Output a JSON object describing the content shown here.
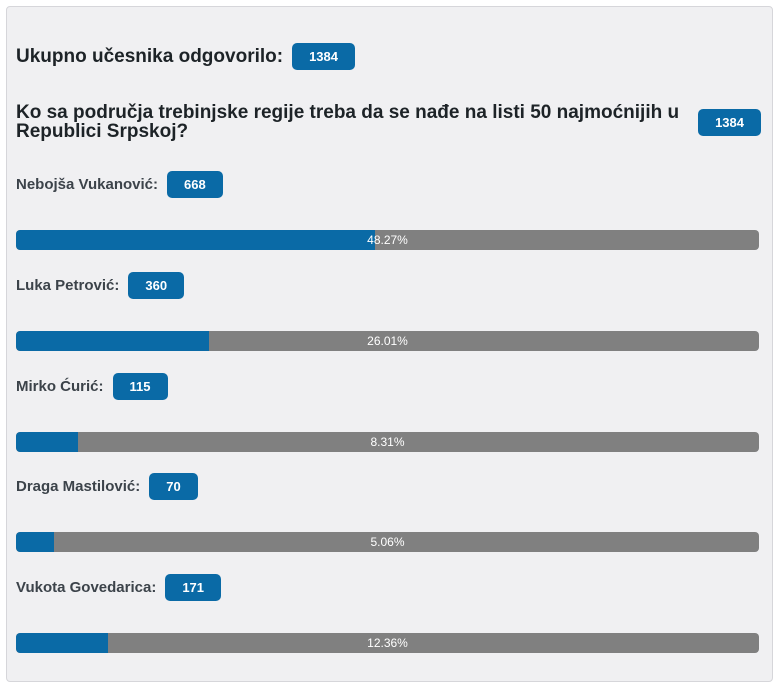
{
  "poll": {
    "total_label": "Ukupno učesnika odgovorilo:",
    "total_count": "1384",
    "question": "Ko sa područja trebinjske regije treba da se nađe na listi 50 najmoćnijih u Republici Srpskoj?",
    "question_count": "1384",
    "options": [
      {
        "label": "Nebojša Vukanović:",
        "votes": "668",
        "percent_text": "48.27%",
        "percent": 48.27
      },
      {
        "label": "Luka Petrović:",
        "votes": "360",
        "percent_text": "26.01%",
        "percent": 26.01
      },
      {
        "label": "Mirko Ćurić:",
        "votes": "115",
        "percent_text": "8.31%",
        "percent": 8.31
      },
      {
        "label": "Draga Mastilović:",
        "votes": "70",
        "percent_text": "5.06%",
        "percent": 5.06
      },
      {
        "label": "Vukota Govedarica:",
        "votes": "171",
        "percent_text": "12.36%",
        "percent": 12.36
      }
    ]
  },
  "colors": {
    "accent": "#0a6aa6",
    "bar_track": "#808080",
    "panel_bg": "#f0f0f2"
  }
}
